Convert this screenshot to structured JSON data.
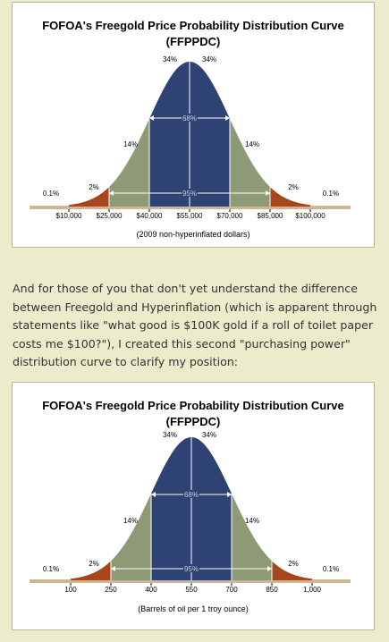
{
  "paragraph": "And for those of you that don't yet understand the difference between Freegold and Hyperinflation (which is apparent through statements like \"what good is $100K gold if a roll of toilet paper costs me $100?\"), I created this second \"purchasing power\" distribution curve to clarify my position:",
  "colors": {
    "core": "#2e4373",
    "band": "#8e9a76",
    "tail": "#a5471a",
    "baseline": "#cdb692"
  },
  "chart_data": [
    {
      "type": "area",
      "title": "FOFOA's Freegold Price Probability Distribution Curve",
      "subtitle": "(FFPPDC)",
      "xlabel": "(2009 non-hyperinflated dollars)",
      "tick_labels": [
        "$10,000",
        "$25,000",
        "$40,000",
        "$55,000",
        "$70,000",
        "$85,000",
        "$100,000"
      ],
      "regions": [
        {
          "name": "outer-left",
          "value": "0.1%"
        },
        {
          "name": "tail-left",
          "value": "2%"
        },
        {
          "name": "band-left",
          "value": "14%"
        },
        {
          "name": "core-left",
          "value": "34%"
        },
        {
          "name": "core-right",
          "value": "34%"
        },
        {
          "name": "band-right",
          "value": "14%"
        },
        {
          "name": "tail-right",
          "value": "2%"
        },
        {
          "name": "outer-right",
          "value": "0.1%"
        }
      ],
      "inner_span_label": "68%",
      "outer_span_label": "95%"
    },
    {
      "type": "area",
      "title": "FOFOA's Freegold Price Probability Distribution Curve",
      "subtitle": "(FFPPDC)",
      "xlabel": "(Barrels of oil per 1 troy ounce)",
      "tick_labels": [
        "100",
        "250",
        "400",
        "550",
        "700",
        "850",
        "1,000"
      ],
      "regions": [
        {
          "name": "outer-left",
          "value": "0.1%"
        },
        {
          "name": "tail-left",
          "value": "2%"
        },
        {
          "name": "band-left",
          "value": "14%"
        },
        {
          "name": "core-left",
          "value": "34%"
        },
        {
          "name": "core-right",
          "value": "34%"
        },
        {
          "name": "band-right",
          "value": "14%"
        },
        {
          "name": "tail-right",
          "value": "2%"
        },
        {
          "name": "outer-right",
          "value": "0.1%"
        }
      ],
      "inner_span_label": "68%",
      "outer_span_label": "95%"
    }
  ]
}
